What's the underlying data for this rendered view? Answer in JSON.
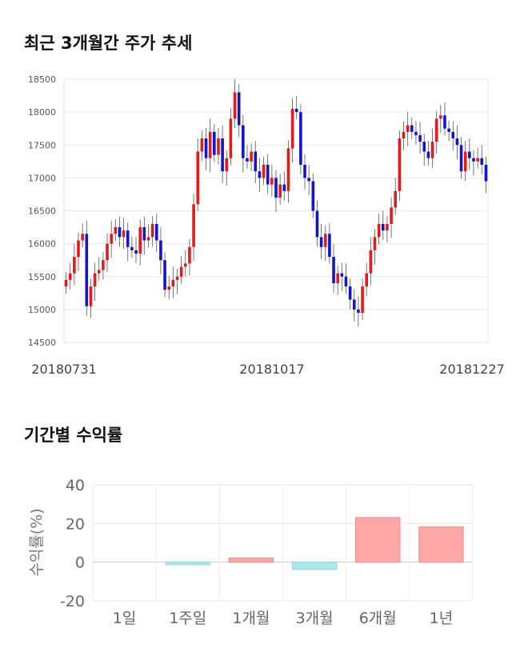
{
  "sections": {
    "price_title": "최근 3개월간 주가 추세",
    "returns_title": "기간별 수익률"
  },
  "colors": {
    "up": "#e21b1b",
    "down": "#1414c8",
    "positive_bar": "#ffa6a6",
    "negative_bar": "#aee6f2"
  },
  "chart_data": [
    {
      "type": "candlestick",
      "title": "최근 3개월간 주가 추세",
      "ylim": [
        14500,
        18500
      ],
      "yticks": [
        14500,
        15000,
        15500,
        16000,
        16500,
        17000,
        17500,
        18000,
        18500
      ],
      "x_tick_labels": [
        "20180731",
        "20181017",
        "20181227"
      ],
      "close_path": [
        15450,
        15550,
        15800,
        16050,
        16150,
        15050,
        15350,
        15550,
        15600,
        15750,
        16000,
        16150,
        16250,
        16100,
        16200,
        15950,
        15900,
        15850,
        16250,
        16050,
        16100,
        16300,
        16050,
        15750,
        15300,
        15350,
        15450,
        15500,
        15650,
        15700,
        15950,
        16600,
        17400,
        17600,
        17300,
        17700,
        17350,
        17600,
        17100,
        17300,
        17900,
        18300,
        17800,
        17300,
        17250,
        17400,
        17100,
        17000,
        17200,
        16900,
        17000,
        16700,
        16900,
        16800,
        17450,
        18050,
        18000,
        17200,
        17000,
        16950,
        16500,
        16100,
        15950,
        16150,
        15800,
        15400,
        15550,
        15500,
        15350,
        15150,
        15000,
        14950,
        15350,
        15550,
        15900,
        16100,
        16300,
        16200,
        16300,
        16550,
        16800,
        17600,
        17700,
        17800,
        17700,
        17650,
        17550,
        17400,
        17300,
        17550,
        17900,
        17950,
        17750,
        17700,
        17600,
        17500,
        17100,
        17400,
        17300,
        17250,
        17300,
        17200,
        16950
      ]
    },
    {
      "type": "bar",
      "title": "기간별 수익률",
      "categories": [
        "1일",
        "1주일",
        "1개월",
        "3개월",
        "6개월",
        "1년"
      ],
      "values": [
        0,
        -1.3,
        2.2,
        -3.8,
        23.1,
        18.2
      ],
      "ylabel": "수익률(%)",
      "ylim": [
        -20,
        40
      ],
      "yticks": [
        -20,
        0,
        20,
        40
      ]
    }
  ]
}
